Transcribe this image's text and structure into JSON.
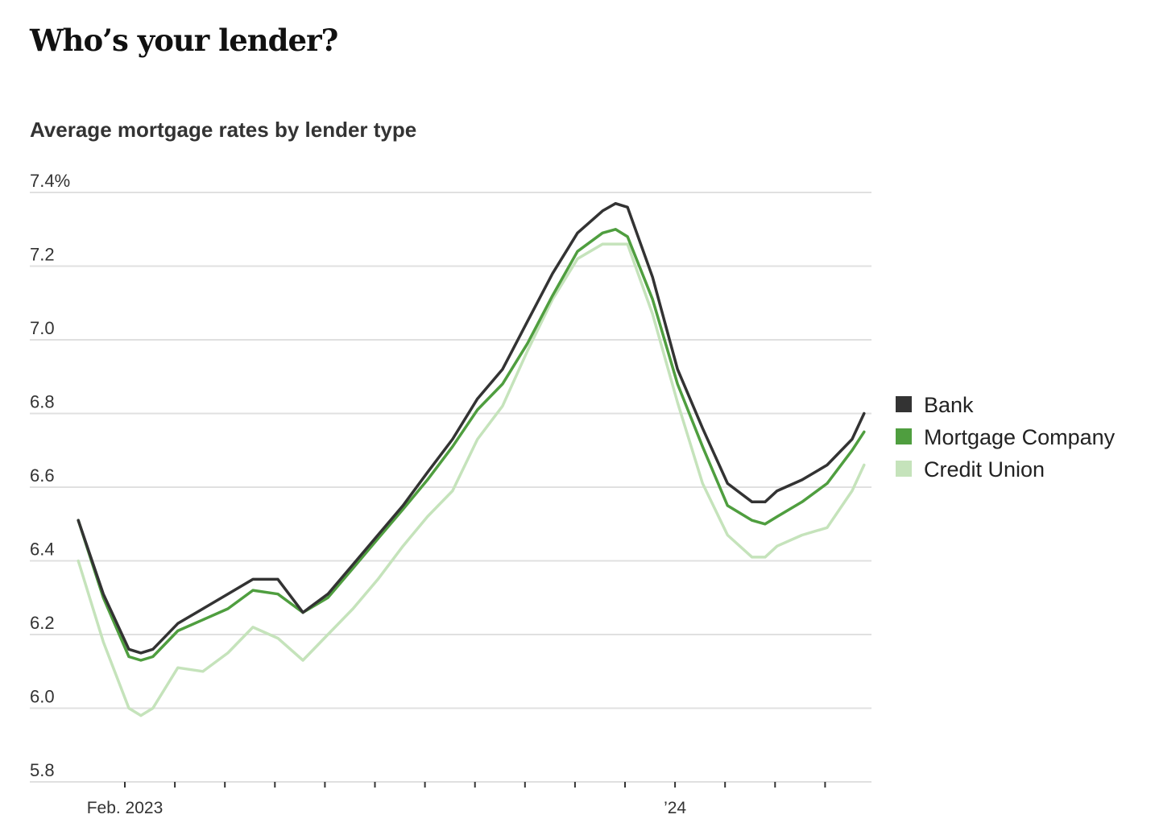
{
  "title": "Who’s your lender?",
  "chart_data": {
    "type": "line",
    "title": "Average mortgage rates by lender type",
    "xlabel": "",
    "ylabel": "",
    "x_units": "months since Jan. 1, 2023",
    "ylim": [
      5.8,
      7.4
    ],
    "y_ticks": [
      {
        "value": 7.4,
        "label": "7.4%"
      },
      {
        "value": 7.2,
        "label": "7.2"
      },
      {
        "value": 7.0,
        "label": "7.0"
      },
      {
        "value": 6.8,
        "label": "6.8"
      },
      {
        "value": 6.6,
        "label": "6.6"
      },
      {
        "value": 6.4,
        "label": "6.4"
      },
      {
        "value": 6.2,
        "label": "6.2"
      },
      {
        "value": 6.0,
        "label": "6.0"
      },
      {
        "value": 5.8,
        "label": "5.8"
      }
    ],
    "x_ticks": [
      1,
      2,
      3,
      4,
      5,
      6,
      7,
      8,
      9,
      10,
      11,
      12,
      13,
      14,
      15
    ],
    "x_tick_labels": [
      {
        "value": 1,
        "label": "Feb. 2023"
      },
      {
        "value": 12,
        "label": "’24"
      }
    ],
    "grid": true,
    "legend_placement": "right",
    "x": [
      0.07,
      0.57,
      1.08,
      1.32,
      1.56,
      2.06,
      2.56,
      3.06,
      3.56,
      4.06,
      4.56,
      5.06,
      5.56,
      6.06,
      6.56,
      7.05,
      7.55,
      8.05,
      8.55,
      9.05,
      9.55,
      10.05,
      10.55,
      10.81,
      11.05,
      11.55,
      12.05,
      12.55,
      13.05,
      13.54,
      13.8,
      14.04,
      14.54,
      15.04,
      15.54,
      15.78
    ],
    "series": [
      {
        "name": "Bank",
        "color": "#333333",
        "values": [
          6.51,
          6.31,
          6.16,
          6.15,
          6.16,
          6.23,
          6.27,
          6.31,
          6.35,
          6.35,
          6.26,
          6.31,
          6.39,
          6.47,
          6.55,
          6.64,
          6.73,
          6.84,
          6.92,
          7.05,
          7.18,
          7.29,
          7.35,
          7.37,
          7.36,
          7.17,
          6.92,
          6.76,
          6.61,
          6.56,
          6.56,
          6.59,
          6.62,
          6.66,
          6.73,
          6.8
        ]
      },
      {
        "name": "Mortgage Company",
        "color": "#4f9e3f",
        "values": [
          6.51,
          6.3,
          6.14,
          6.13,
          6.14,
          6.21,
          6.24,
          6.27,
          6.32,
          6.31,
          6.26,
          6.3,
          6.38,
          6.46,
          6.54,
          6.62,
          6.71,
          6.81,
          6.88,
          6.99,
          7.12,
          7.24,
          7.29,
          7.3,
          7.28,
          7.11,
          6.88,
          6.71,
          6.55,
          6.51,
          6.5,
          6.52,
          6.56,
          6.61,
          6.7,
          6.75
        ]
      },
      {
        "name": "Credit Union",
        "color": "#c5e3bb",
        "values": [
          6.4,
          6.18,
          6.0,
          5.98,
          6.0,
          6.11,
          6.1,
          6.15,
          6.22,
          6.19,
          6.13,
          6.2,
          6.27,
          6.35,
          6.44,
          6.52,
          6.59,
          6.73,
          6.82,
          6.97,
          7.11,
          7.22,
          7.26,
          7.26,
          7.26,
          7.07,
          6.83,
          6.61,
          6.47,
          6.41,
          6.41,
          6.44,
          6.47,
          6.49,
          6.59,
          6.66
        ]
      }
    ]
  }
}
